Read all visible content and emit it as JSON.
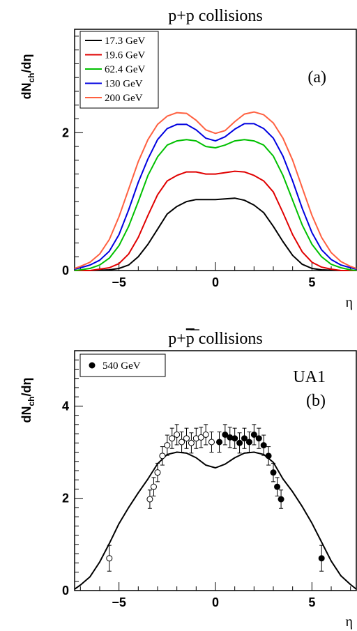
{
  "chart_data": [
    {
      "type": "line",
      "title_parts": [
        "p+p collisions"
      ],
      "xlabel": "η",
      "ylabel": [
        "dN",
        "ch",
        "/dη"
      ],
      "xlim": [
        -7.3,
        7.3
      ],
      "ylim": [
        0,
        3.5
      ],
      "xticks": [
        -5,
        0,
        5
      ],
      "xtick_labels": [
        "−5",
        "0",
        "5"
      ],
      "yticks": [
        0,
        2
      ],
      "ytick_labels": [
        "0",
        "2"
      ],
      "annotation": "(a)",
      "legend_position": "top-left",
      "series": [
        {
          "name": "17.3 GeV",
          "color": "#000000",
          "x": [
            -7.3,
            -6.5,
            -5.5,
            -5,
            -4.5,
            -4,
            -3.5,
            -3,
            -2.5,
            -2,
            -1.5,
            -1,
            -0.5,
            0,
            0.5,
            1,
            1.5,
            2,
            2.5,
            3,
            3.5,
            4,
            4.5,
            5,
            5.5,
            6.5,
            7.3
          ],
          "y": [
            0.0,
            0.0,
            0.01,
            0.03,
            0.08,
            0.2,
            0.38,
            0.6,
            0.82,
            0.93,
            1.0,
            1.03,
            1.03,
            1.03,
            1.04,
            1.05,
            1.02,
            0.95,
            0.84,
            0.64,
            0.42,
            0.22,
            0.09,
            0.03,
            0.01,
            0.0,
            0.0
          ]
        },
        {
          "name": "19.6 GeV",
          "color": "#e00000",
          "x": [
            -7.3,
            -6.5,
            -6,
            -5.5,
            -5,
            -4.5,
            -4,
            -3.5,
            -3,
            -2.5,
            -2,
            -1.5,
            -1,
            -0.5,
            0,
            0.5,
            1,
            1.5,
            2,
            2.5,
            3,
            3.5,
            4,
            4.5,
            5,
            5.5,
            6,
            6.5,
            7.3
          ],
          "y": [
            0.0,
            0.0,
            0.02,
            0.04,
            0.1,
            0.24,
            0.48,
            0.8,
            1.1,
            1.3,
            1.38,
            1.43,
            1.43,
            1.4,
            1.4,
            1.42,
            1.44,
            1.43,
            1.38,
            1.3,
            1.14,
            0.84,
            0.52,
            0.27,
            0.12,
            0.05,
            0.02,
            0.0,
            0.0
          ]
        },
        {
          "name": "62.4 GeV",
          "color": "#00c000",
          "x": [
            -7.3,
            -7,
            -6.5,
            -6,
            -5.5,
            -5,
            -4.5,
            -4,
            -3.5,
            -3,
            -2.5,
            -2,
            -1.5,
            -1,
            -0.5,
            0,
            0.5,
            1,
            1.5,
            2,
            2.5,
            3,
            3.5,
            4,
            4.5,
            5,
            5.5,
            6,
            6.5,
            7,
            7.3
          ],
          "y": [
            0.0,
            0.01,
            0.03,
            0.08,
            0.18,
            0.36,
            0.64,
            1.0,
            1.38,
            1.65,
            1.82,
            1.88,
            1.9,
            1.88,
            1.8,
            1.78,
            1.82,
            1.88,
            1.9,
            1.88,
            1.82,
            1.66,
            1.38,
            1.02,
            0.66,
            0.38,
            0.2,
            0.09,
            0.04,
            0.01,
            0.0
          ]
        },
        {
          "name": "130 GeV",
          "color": "#0000e0",
          "x": [
            -7.3,
            -7,
            -6.5,
            -6,
            -5.5,
            -5,
            -4.5,
            -4,
            -3.5,
            -3,
            -2.5,
            -2,
            -1.5,
            -1,
            -0.5,
            0,
            0.5,
            1,
            1.5,
            2,
            2.5,
            3,
            3.5,
            4,
            4.5,
            5,
            5.5,
            6,
            6.5,
            7,
            7.3
          ],
          "y": [
            0.02,
            0.04,
            0.08,
            0.15,
            0.28,
            0.52,
            0.88,
            1.28,
            1.62,
            1.9,
            2.06,
            2.12,
            2.12,
            2.04,
            1.92,
            1.88,
            1.94,
            2.05,
            2.13,
            2.13,
            2.06,
            1.92,
            1.66,
            1.3,
            0.9,
            0.55,
            0.3,
            0.16,
            0.08,
            0.04,
            0.02
          ]
        },
        {
          "name": "200 GeV",
          "color": "#ff6040",
          "x": [
            -7.3,
            -7,
            -6.5,
            -6,
            -5.5,
            -5,
            -4.5,
            -4,
            -3.5,
            -3,
            -2.5,
            -2,
            -1.5,
            -1,
            -0.5,
            0,
            0.5,
            1,
            1.5,
            2,
            2.5,
            3,
            3.5,
            4,
            4.5,
            5,
            5.5,
            6,
            6.5,
            7,
            7.3
          ],
          "y": [
            0.03,
            0.06,
            0.12,
            0.24,
            0.45,
            0.78,
            1.18,
            1.58,
            1.9,
            2.12,
            2.24,
            2.29,
            2.28,
            2.18,
            2.04,
            1.99,
            2.03,
            2.16,
            2.27,
            2.3,
            2.26,
            2.14,
            1.92,
            1.6,
            1.2,
            0.8,
            0.48,
            0.26,
            0.13,
            0.06,
            0.03
          ]
        }
      ]
    },
    {
      "type": "line",
      "title_parts": [
        "p+",
        "p",
        " collisions"
      ],
      "xlabel": "η",
      "ylabel": [
        "dN",
        "ch",
        "/dη"
      ],
      "xlim": [
        -7.3,
        7.3
      ],
      "ylim": [
        0,
        5.2
      ],
      "xticks": [
        -5,
        0,
        5
      ],
      "xtick_labels": [
        "−5",
        "0",
        "5"
      ],
      "yticks": [
        0,
        2,
        4
      ],
      "ytick_labels": [
        "0",
        "2",
        "4"
      ],
      "annotation_line1": "UA1",
      "annotation_line2": "(b)",
      "legend_position": "top-left",
      "series": [
        {
          "name": "",
          "color": "#000000",
          "x": [
            -7.3,
            -7,
            -6.5,
            -6,
            -5.5,
            -5,
            -4.5,
            -4,
            -3.5,
            -3,
            -2.5,
            -2,
            -1.5,
            -1,
            -0.5,
            0,
            0.5,
            1,
            1.5,
            2,
            2.5,
            3,
            3.5,
            4,
            4.5,
            5,
            5.5,
            6,
            6.5,
            7,
            7.3
          ],
          "y": [
            0.03,
            0.12,
            0.3,
            0.62,
            1.02,
            1.45,
            1.8,
            2.12,
            2.42,
            2.75,
            2.95,
            3.0,
            2.98,
            2.88,
            2.72,
            2.66,
            2.74,
            2.88,
            2.98,
            3.0,
            2.95,
            2.78,
            2.42,
            2.14,
            1.82,
            1.46,
            1.05,
            0.64,
            0.32,
            0.13,
            0.03
          ]
        }
      ],
      "points": [
        {
          "name": "540 GeV",
          "color": "#000000",
          "filled": {
            "x": [
              0.2,
              0.5,
              0.75,
              1.0,
              1.25,
              1.5,
              1.75,
              2.0,
              2.25,
              2.5,
              2.75,
              3.0,
              3.2,
              3.4,
              5.5
            ],
            "y": [
              3.22,
              3.38,
              3.32,
              3.3,
              3.2,
              3.3,
              3.22,
              3.38,
              3.3,
              3.15,
              2.92,
              2.56,
              2.25,
              1.98,
              0.7
            ],
            "err": [
              0.22,
              0.22,
              0.22,
              0.22,
              0.22,
              0.22,
              0.22,
              0.22,
              0.22,
              0.22,
              0.2,
              0.2,
              0.2,
              0.2,
              0.28
            ]
          },
          "open": {
            "x": [
              -5.5,
              -3.4,
              -3.2,
              -3.0,
              -2.75,
              -2.5,
              -2.25,
              -2.0,
              -1.75,
              -1.5,
              -1.25,
              -1.0,
              -0.75,
              -0.5,
              -0.2
            ],
            "y": [
              0.7,
              1.98,
              2.25,
              2.56,
              2.92,
              3.15,
              3.3,
              3.38,
              3.22,
              3.3,
              3.2,
              3.3,
              3.32,
              3.38,
              3.22
            ],
            "err": [
              0.28,
              0.2,
              0.2,
              0.2,
              0.2,
              0.22,
              0.22,
              0.22,
              0.22,
              0.22,
              0.22,
              0.22,
              0.22,
              0.22,
              0.22
            ]
          }
        }
      ]
    }
  ]
}
